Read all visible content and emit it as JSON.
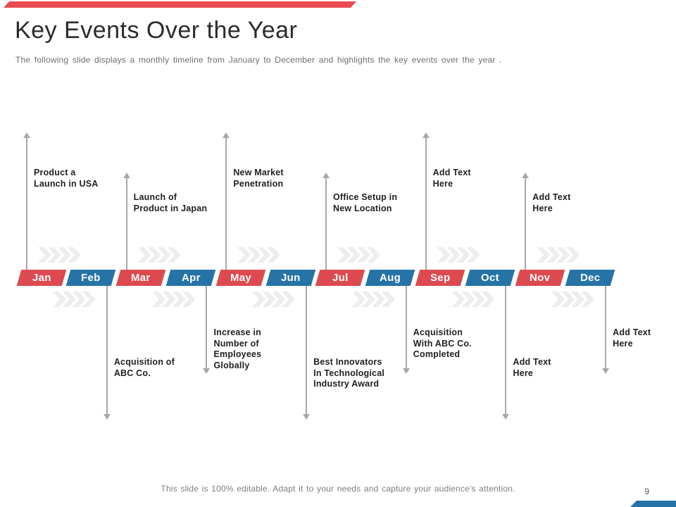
{
  "accent": {
    "red": "#dc4a4f",
    "red_bright": "#ea4b50",
    "blue": "#2673a7",
    "arrow_gray": "#a8a8a8",
    "chevron_gray": "#ededed"
  },
  "header": {
    "title": "Key Events Over the Year",
    "subtitle": "The following slide displays a monthly timeline from January to December and highlights the key events over the year ."
  },
  "timeline": {
    "months": [
      {
        "label": "Jan",
        "color": "red"
      },
      {
        "label": "Feb",
        "color": "blue"
      },
      {
        "label": "Mar",
        "color": "red"
      },
      {
        "label": "Apr",
        "color": "blue"
      },
      {
        "label": "May",
        "color": "red"
      },
      {
        "label": "Jun",
        "color": "blue"
      },
      {
        "label": "Jul",
        "color": "red"
      },
      {
        "label": "Aug",
        "color": "blue"
      },
      {
        "label": "Sep",
        "color": "red"
      },
      {
        "label": "Oct",
        "color": "blue"
      },
      {
        "label": "Nov",
        "color": "red"
      },
      {
        "label": "Dec",
        "color": "blue"
      }
    ],
    "events": [
      {
        "month": "Jan",
        "month_index": 0,
        "side": "above",
        "arrow": "tall",
        "lines": [
          "Product a",
          "Launch in USA"
        ]
      },
      {
        "month": "Feb",
        "month_index": 1,
        "side": "below",
        "arrow": "long",
        "lines": [
          "Acquisition of",
          "ABC Co."
        ]
      },
      {
        "month": "Mar",
        "month_index": 2,
        "side": "above",
        "arrow": "short",
        "lines": [
          "Launch of",
          "Product in Japan"
        ]
      },
      {
        "month": "Apr",
        "month_index": 3,
        "side": "below",
        "arrow": "short",
        "lines": [
          "Increase in",
          "Number of",
          "Employees",
          "Globally"
        ]
      },
      {
        "month": "May",
        "month_index": 4,
        "side": "above",
        "arrow": "tall",
        "lines": [
          "New Market",
          "Penetration"
        ]
      },
      {
        "month": "Jun",
        "month_index": 5,
        "side": "below",
        "arrow": "long",
        "lines": [
          "Best Innovators",
          "In Technological",
          "Industry Award"
        ]
      },
      {
        "month": "Jul",
        "month_index": 6,
        "side": "above",
        "arrow": "short",
        "lines": [
          "Office Setup in",
          "New Location"
        ]
      },
      {
        "month": "Aug",
        "month_index": 7,
        "side": "below",
        "arrow": "short",
        "lines": [
          "Acquisition",
          "With ABC Co.",
          "Completed"
        ]
      },
      {
        "month": "Sep",
        "month_index": 8,
        "side": "above",
        "arrow": "tall",
        "lines": [
          "Add Text",
          "Here"
        ]
      },
      {
        "month": "Oct",
        "month_index": 9,
        "side": "below",
        "arrow": "long",
        "lines": [
          "Add Text",
          "Here"
        ]
      },
      {
        "month": "Nov",
        "month_index": 10,
        "side": "above",
        "arrow": "short",
        "lines": [
          "Add Text",
          "Here"
        ]
      },
      {
        "month": "Dec",
        "month_index": 11,
        "side": "below",
        "arrow": "short",
        "lines": [
          "Add Text",
          "Here"
        ]
      }
    ]
  },
  "footer": {
    "note": "This slide is 100% editable. Adapt it to your needs and capture your audience's attention.",
    "page_number": "9"
  }
}
